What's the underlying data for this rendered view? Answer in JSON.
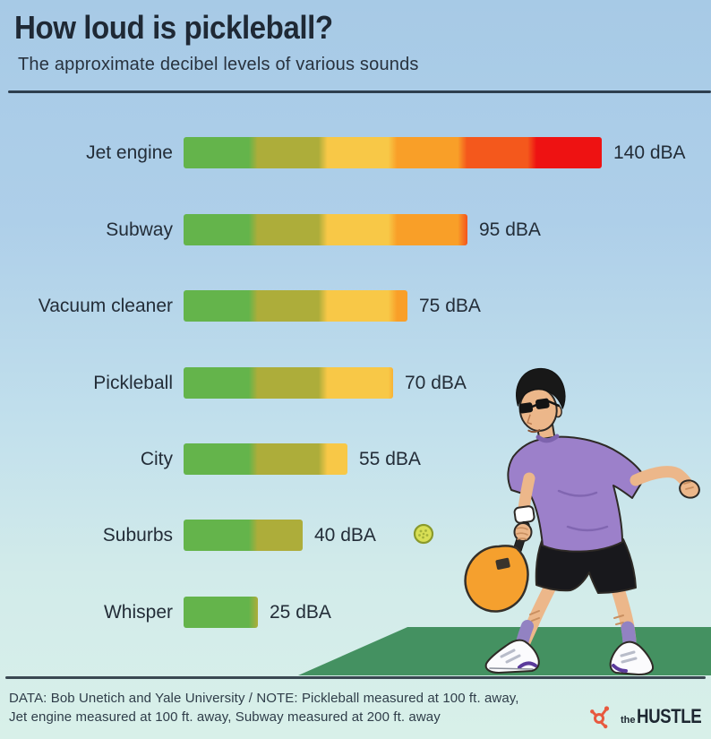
{
  "header": {
    "title": "How loud is pickleball?",
    "subtitle": "The approximate decibel levels of various sounds"
  },
  "chart_data": {
    "type": "bar",
    "orientation": "horizontal",
    "unit": "dBA",
    "categories": [
      "Jet engine",
      "Subway",
      "Vacuum cleaner",
      "Pickleball",
      "City",
      "Suburbs",
      "Whisper"
    ],
    "values": [
      140,
      95,
      75,
      70,
      55,
      40,
      25
    ],
    "value_labels": [
      "140 dBA",
      "95 dBA",
      "75 dBA",
      "70 dBA",
      "55 dBA",
      "40 dBA",
      "25 dBA"
    ],
    "xlim": [
      0,
      140
    ],
    "grid": false,
    "legend": false,
    "bar_gradient_segment_colors": [
      "#64b44b",
      "#adad3a",
      "#f8c847",
      "#f99f28",
      "#f4581c",
      "#ee1212"
    ]
  },
  "footer": {
    "note_line1": "DATA: Bob Unetich and Yale University / NOTE: Pickleball measured at 100 ft. away,",
    "note_line2": "Jet engine measured at 100 ft. away, Subway measured at 200 ft. away",
    "brand_prefix": "the",
    "brand_name": "HUSTLE"
  },
  "colors": {
    "background_top": "#a9cbe5",
    "background_bottom": "#d8efe9",
    "court_green": "#449161",
    "paddle_orange": "#f5a02e",
    "shirt_purple": "#9c80ca",
    "pickleball_yellow": "#d8df55",
    "brand_orange": "#e8593f",
    "text_dark": "#232d38"
  },
  "icons": {
    "pickleball": "pickleball-icon",
    "brand_logo": "hustle-sprocket-icon",
    "illustration": "pickleball-player-illustration"
  }
}
